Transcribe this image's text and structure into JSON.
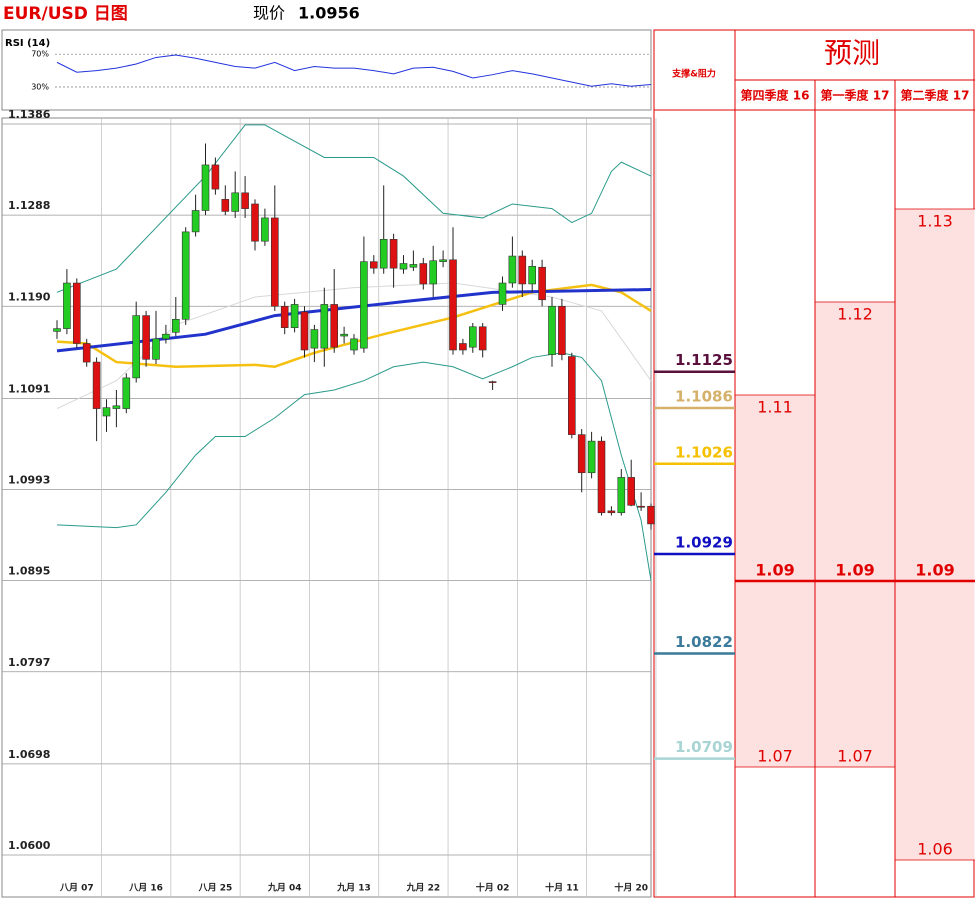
{
  "header": {
    "title": "EUR/USD 日图",
    "price_label": "现价",
    "price": 1.0956
  },
  "chart_data": [
    {
      "type": "line",
      "title": "RSI (14)",
      "color": "#2233dd",
      "xlim": [
        0,
        60
      ],
      "x": [
        0,
        2,
        4,
        6,
        8,
        10,
        12,
        14,
        16,
        18,
        20,
        22,
        24,
        26,
        28,
        30,
        32,
        34,
        36,
        38,
        40,
        42,
        44,
        46,
        48,
        50,
        52,
        54,
        56,
        58,
        60
      ],
      "values": [
        60,
        48,
        50,
        53,
        58,
        66,
        69,
        65,
        60,
        55,
        53,
        60,
        50,
        55,
        53,
        53,
        50,
        46,
        53,
        54,
        49,
        41,
        45,
        50,
        46,
        41,
        36,
        31,
        34,
        31,
        33
      ],
      "ylim": [
        2,
        97
      ],
      "yticks": [
        {
          "value": 70,
          "label": "70%"
        },
        {
          "value": 30,
          "label": "30%"
        }
      ]
    },
    {
      "type": "candlestick",
      "up_color": "#22cc22",
      "down_color": "#dd1111",
      "grid": true,
      "categories": [
        null,
        null,
        "八月 07",
        null,
        null,
        null,
        null,
        null,
        null,
        "八月 16",
        null,
        null,
        null,
        null,
        null,
        null,
        "八月 25",
        null,
        null,
        null,
        null,
        null,
        null,
        "九月 04",
        null,
        null,
        null,
        null,
        null,
        null,
        "九月 13",
        null,
        null,
        null,
        null,
        null,
        null,
        "九月 22",
        null,
        null,
        null,
        null,
        null,
        null,
        "十月 02",
        null,
        null,
        null,
        null,
        null,
        null,
        "十月 11",
        null,
        null,
        null,
        null,
        null,
        null,
        "十月 20",
        null,
        null
      ],
      "open": [
        1.1163,
        1.1166,
        1.1215,
        1.115,
        1.113,
        1.1072,
        1.108,
        1.108,
        1.1113,
        1.118,
        1.1133,
        1.1155,
        1.1162,
        1.1176,
        1.127,
        1.1293,
        1.1342,
        1.1305,
        1.1292,
        1.1312,
        1.13,
        1.126,
        1.1285,
        1.119,
        1.1167,
        1.1184,
        1.1145,
        1.1145,
        1.1192,
        1.1158,
        1.1143,
        1.1145,
        1.1238,
        1.1231,
        1.1262,
        1.123,
        1.1232,
        1.1236,
        1.1214,
        1.1238,
        1.124,
        1.115,
        1.1146,
        1.1168,
        1.1109,
        1.1192,
        1.1215,
        1.1244,
        1.1214,
        1.1232,
        1.1138,
        1.119,
        1.1136,
        1.1052,
        1.1011,
        1.1045,
        1.097,
        1.0968,
        1.1006,
        1.0975,
        1.0975
      ],
      "high": [
        1.1175,
        1.123,
        1.122,
        1.1155,
        1.1135,
        1.109,
        1.11,
        1.1118,
        1.1195,
        1.1185,
        1.1185,
        1.117,
        1.12,
        1.1275,
        1.131,
        1.1365,
        1.135,
        1.132,
        1.1335,
        1.133,
        1.1305,
        1.1295,
        1.132,
        1.1195,
        1.1198,
        1.119,
        1.117,
        1.121,
        1.123,
        1.1168,
        1.116,
        1.1265,
        1.1245,
        1.132,
        1.1268,
        1.1245,
        1.125,
        1.1242,
        1.1255,
        1.125,
        1.1275,
        1.1155,
        1.1172,
        1.1172,
        1.111,
        1.1222,
        1.1265,
        1.125,
        1.124,
        1.124,
        1.12,
        1.1198,
        1.114,
        1.1058,
        1.1055,
        1.105,
        1.0975,
        1.1015,
        1.1025,
        1.099,
        1.0978
      ],
      "low": [
        1.1155,
        1.116,
        1.1145,
        1.1125,
        1.1045,
        1.1055,
        1.106,
        1.1075,
        1.1108,
        1.1125,
        1.1128,
        1.115,
        1.1158,
        1.117,
        1.1265,
        1.1288,
        1.131,
        1.1288,
        1.1285,
        1.1285,
        1.125,
        1.1255,
        1.1185,
        1.116,
        1.1162,
        1.1135,
        1.113,
        1.1125,
        1.114,
        1.115,
        1.1138,
        1.114,
        1.1225,
        1.1225,
        1.121,
        1.1225,
        1.1228,
        1.1208,
        1.12,
        1.1232,
        1.1138,
        1.1138,
        1.114,
        1.1135,
        1.11,
        1.1185,
        1.121,
        1.12,
        1.1205,
        1.119,
        1.1125,
        1.1132,
        1.1048,
        1.099,
        1.1005,
        1.0965,
        1.0965,
        1.0965,
        1.0975,
        1.097,
        1.095
      ],
      "close": [
        1.1166,
        1.1215,
        1.115,
        1.113,
        1.108,
        1.1081,
        1.1083,
        1.1113,
        1.118,
        1.1133,
        1.1155,
        1.116,
        1.1176,
        1.127,
        1.1293,
        1.1342,
        1.1316,
        1.1292,
        1.1312,
        1.1295,
        1.126,
        1.1285,
        1.119,
        1.1167,
        1.1192,
        1.1143,
        1.1165,
        1.1192,
        1.1146,
        1.116,
        1.1155,
        1.1238,
        1.1231,
        1.1262,
        1.1231,
        1.1236,
        1.1235,
        1.1214,
        1.1239,
        1.124,
        1.1143,
        1.1143,
        1.1168,
        1.1143,
        1.1108,
        1.1215,
        1.1244,
        1.1214,
        1.1233,
        1.1197,
        1.119,
        1.1138,
        1.1052,
        1.1011,
        1.1045,
        1.0968,
        1.0968,
        1.1006,
        1.0976,
        1.0974,
        1.0956
      ],
      "ylim": [
        1.06,
        1.1386
      ],
      "yticks": [
        1.1386,
        1.1288,
        {
          "value": 1.119,
          "label": "1.1190"
        },
        1.1091,
        1.0993,
        1.0895,
        1.0797,
        1.0698,
        {
          "value": 1.06,
          "label": "1.0600"
        }
      ],
      "lines": [
        {
          "color": "#d8d8d8",
          "x": [
            0,
            6,
            12,
            20,
            30,
            40,
            50,
            55,
            60
          ],
          "values": [
            1.108,
            1.111,
            1.117,
            1.12,
            1.121,
            1.1215,
            1.12,
            1.1185,
            1.111
          ]
        },
        {
          "color": "#2a9a8a",
          "x": [
            0,
            6,
            15,
            19,
            21,
            27,
            32,
            35,
            39,
            43,
            46,
            50,
            52,
            54,
            56,
            57,
            60
          ],
          "values": [
            1.1205,
            1.123,
            1.133,
            1.1385,
            1.1385,
            1.135,
            1.135,
            1.133,
            1.129,
            1.1285,
            1.13,
            1.1295,
            1.128,
            1.129,
            1.1335,
            1.1345,
            1.133
          ]
        },
        {
          "color": "#2a9a8a",
          "x": [
            0,
            6,
            8,
            11,
            14,
            16,
            19,
            22,
            25,
            28,
            31,
            34,
            37,
            40,
            43,
            46,
            48,
            51,
            53,
            55,
            57,
            59,
            60
          ],
          "values": [
            1.0955,
            1.0952,
            1.0955,
            1.099,
            1.103,
            1.105,
            1.105,
            1.107,
            1.1095,
            1.11,
            1.111,
            1.1125,
            1.113,
            1.1125,
            1.1112,
            1.1125,
            1.1135,
            1.114,
            1.1135,
            1.111,
            1.103,
            1.096,
            1.0895
          ]
        },
        {
          "color": "#f5c010",
          "x": [
            0,
            3,
            6,
            12,
            20,
            22,
            26,
            33,
            40,
            48,
            54,
            57,
            60
          ],
          "values": [
            1.1152,
            1.115,
            1.113,
            1.1125,
            1.1127,
            1.1125,
            1.114,
            1.116,
            1.1178,
            1.1205,
            1.1213,
            1.1205,
            1.1185
          ]
        },
        {
          "color": "#2233cc",
          "x": [
            0,
            15,
            22,
            35,
            44,
            60
          ],
          "values": [
            1.1142,
            1.116,
            1.118,
            1.1195,
            1.1205,
            1.1208
          ]
        }
      ]
    }
  ],
  "levels": {
    "title": "支撑&阻力",
    "items": [
      {
        "value": 1.1125,
        "color": "#5a0f3c"
      },
      {
        "value": 1.1086,
        "color": "#d4b06a"
      },
      {
        "value": 1.1026,
        "color": "#f5c000"
      },
      {
        "value": 1.0929,
        "color": "#1010c0"
      },
      {
        "value": 1.0822,
        "color": "#3a7a9a"
      },
      {
        "value": 1.0709,
        "color": "#a8d4d4"
      }
    ]
  },
  "forecast": {
    "title": "预测",
    "columns": [
      {
        "name": "第四季度 16",
        "values": [
          1.11,
          1.09,
          1.07
        ]
      },
      {
        "name": "第一季度 17",
        "values": [
          1.12,
          1.09,
          1.07
        ]
      },
      {
        "name": "第二季度 17",
        "values": [
          1.13,
          1.09,
          1.06
        ]
      }
    ]
  }
}
